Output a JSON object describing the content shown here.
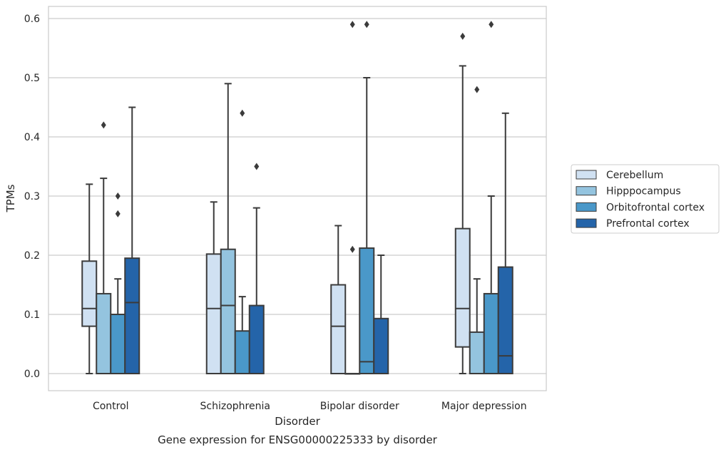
{
  "chart_data": {
    "type": "boxplot",
    "caption": "Gene expression for ENSG00000225333 by disorder",
    "xlabel": "Disorder",
    "ylabel": "TPMs",
    "ylim": [
      -0.028,
      0.62
    ],
    "yticks": [
      0.0,
      0.1,
      0.2,
      0.3,
      0.4,
      0.5,
      0.6
    ],
    "ytick_labels": [
      "0.0",
      "0.1",
      "0.2",
      "0.3",
      "0.4",
      "0.5",
      "0.6"
    ],
    "grid": true,
    "legend_position": "right",
    "categories": [
      "Control",
      "Schizophrenia",
      "Bipolar disorder",
      "Major depression"
    ],
    "series": [
      {
        "name": "Cerebellum",
        "color": "#d0e1f2",
        "boxes": [
          {
            "q1": 0.08,
            "median": 0.11,
            "q3": 0.19,
            "whislo": 0.0,
            "whishi": 0.32,
            "fliers": []
          },
          {
            "q1": 0.0,
            "median": 0.11,
            "q3": 0.202,
            "whislo": 0.0,
            "whishi": 0.29,
            "fliers": []
          },
          {
            "q1": 0.0,
            "median": 0.08,
            "q3": 0.15,
            "whislo": 0.0,
            "whishi": 0.25,
            "fliers": []
          },
          {
            "q1": 0.045,
            "median": 0.11,
            "q3": 0.245,
            "whislo": 0.0,
            "whishi": 0.52,
            "fliers": [
              0.57
            ]
          }
        ]
      },
      {
        "name": "Hipppocampus",
        "color": "#94c4df",
        "boxes": [
          {
            "q1": 0.0,
            "median": 0.0,
            "q3": 0.135,
            "whislo": 0.0,
            "whishi": 0.33,
            "fliers": [
              0.42
            ]
          },
          {
            "q1": 0.0,
            "median": 0.115,
            "q3": 0.21,
            "whislo": 0.0,
            "whishi": 0.49,
            "fliers": []
          },
          {
            "q1": 0.0,
            "median": 0.0,
            "q3": 0.0,
            "whislo": 0.0,
            "whishi": 0.0,
            "fliers": [
              0.21,
              0.59
            ]
          },
          {
            "q1": 0.0,
            "median": 0.0,
            "q3": 0.07,
            "whislo": 0.0,
            "whishi": 0.16,
            "fliers": [
              0.48
            ]
          }
        ]
      },
      {
        "name": "Orbitofrontal cortex",
        "color": "#4a98c9",
        "boxes": [
          {
            "q1": 0.0,
            "median": 0.0,
            "q3": 0.1,
            "whislo": 0.0,
            "whishi": 0.16,
            "fliers": [
              0.27,
              0.3
            ]
          },
          {
            "q1": 0.0,
            "median": 0.0,
            "q3": 0.072,
            "whislo": 0.0,
            "whishi": 0.13,
            "fliers": [
              0.44
            ]
          },
          {
            "q1": 0.0,
            "median": 0.02,
            "q3": 0.212,
            "whislo": 0.0,
            "whishi": 0.5,
            "fliers": [
              0.59
            ]
          },
          {
            "q1": 0.0,
            "median": 0.0,
            "q3": 0.135,
            "whislo": 0.0,
            "whishi": 0.3,
            "fliers": [
              0.59
            ]
          }
        ]
      },
      {
        "name": "Prefrontal cortex",
        "color": "#2464a9",
        "boxes": [
          {
            "q1": 0.0,
            "median": 0.12,
            "q3": 0.195,
            "whislo": 0.0,
            "whishi": 0.45,
            "fliers": []
          },
          {
            "q1": 0.0,
            "median": 0.0,
            "q3": 0.115,
            "whislo": 0.0,
            "whishi": 0.28,
            "fliers": [
              0.35
            ]
          },
          {
            "q1": 0.0,
            "median": 0.0,
            "q3": 0.093,
            "whislo": 0.0,
            "whishi": 0.2,
            "fliers": []
          },
          {
            "q1": 0.0,
            "median": 0.03,
            "q3": 0.18,
            "whislo": 0.0,
            "whishi": 0.44,
            "fliers": []
          }
        ]
      }
    ]
  }
}
